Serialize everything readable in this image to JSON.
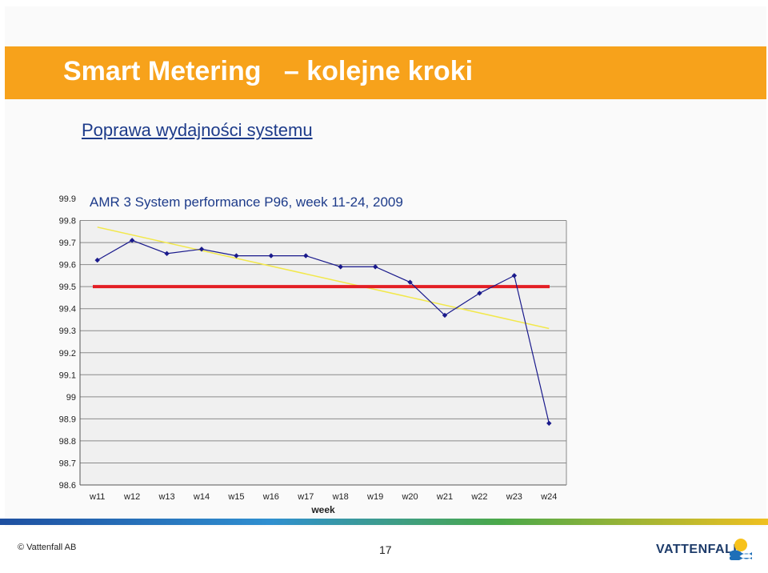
{
  "slide": {
    "title": "Smart Metering   – kolejne kroki",
    "subtitle": "Poprawa wydajności systemu",
    "copyright": "© Vattenfall AB",
    "page_number": "17",
    "brand": "VATTENFALL"
  },
  "colors": {
    "title_bar": "#f7a21b",
    "series_line": "#1a1a8c",
    "target_line": "#e31e24",
    "trend_line": "#f2e84a",
    "plot_bg": "#c0c0c0"
  },
  "chart_data": {
    "type": "line",
    "title": "AMR 3 System performance P96, week 11-24, 2009",
    "xlabel": "week",
    "ylabel": "",
    "categories": [
      "w11",
      "w12",
      "w13",
      "w14",
      "w15",
      "w16",
      "w17",
      "w18",
      "w19",
      "w20",
      "w21",
      "w22",
      "w23",
      "w24"
    ],
    "series": [
      {
        "values": [
          99.62,
          99.71,
          99.65,
          99.67,
          99.64,
          99.64,
          99.64,
          99.59,
          99.59,
          99.52,
          99.37,
          99.47,
          99.55,
          98.88
        ]
      }
    ],
    "target": 99.5,
    "trend": {
      "start": 99.77,
      "end": 99.31
    },
    "ylim": [
      98.6,
      99.9
    ],
    "yticks": [
      "99.9",
      "99.8",
      "99.7",
      "99.6",
      "99.5",
      "99.4",
      "99.3",
      "99.2",
      "99.1",
      "99",
      "98.9",
      "98.8",
      "98.7",
      "98.6"
    ],
    "grid": true,
    "legend": "none"
  }
}
